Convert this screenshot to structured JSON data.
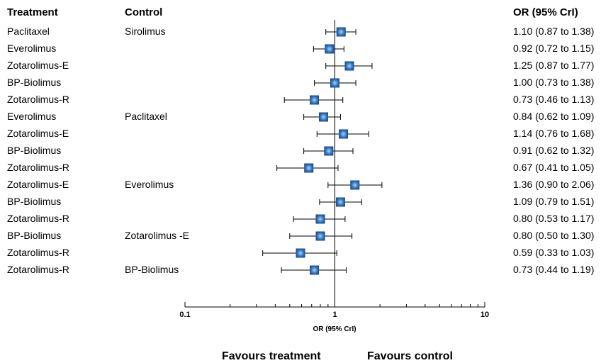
{
  "headers": {
    "treatment": "Treatment",
    "control": "Control",
    "or": "OR (95% CrI)"
  },
  "favours": {
    "left": "Favours  treatment",
    "right": "Favours  control"
  },
  "colors": {
    "marker": "#3a7fc8",
    "marker_edge": "#1c4e8a",
    "line": "#000000"
  },
  "chart_data": {
    "type": "forest",
    "scale": "log",
    "xlim": [
      0.1,
      10
    ],
    "xticks": [
      "0.1",
      "1",
      "10"
    ],
    "xlabel": "OR (95% CrI)",
    "reference_line": 1,
    "rows": [
      {
        "treatment": "Paclitaxel",
        "control": "Sirolimus",
        "or": 1.1,
        "lo": 0.87,
        "hi": 1.38,
        "label": "1.10 (0.87 to 1.38)"
      },
      {
        "treatment": "Everolimus",
        "control": "",
        "or": 0.92,
        "lo": 0.72,
        "hi": 1.15,
        "label": "0.92 (0.72 to 1.15)"
      },
      {
        "treatment": "Zotarolimus-E",
        "control": "",
        "or": 1.25,
        "lo": 0.87,
        "hi": 1.77,
        "label": "1.25 (0.87 to 1.77)"
      },
      {
        "treatment": "BP-Biolimus",
        "control": "",
        "or": 1.0,
        "lo": 0.73,
        "hi": 1.38,
        "label": "1.00 (0.73 to 1.38)"
      },
      {
        "treatment": "Zotarolimus-R",
        "control": "",
        "or": 0.73,
        "lo": 0.46,
        "hi": 1.13,
        "label": "0.73 (0.46 to 1.13)"
      },
      {
        "treatment": "Everolimus",
        "control": "Paclitaxel",
        "or": 0.84,
        "lo": 0.62,
        "hi": 1.09,
        "label": "0.84 (0.62 to 1.09)"
      },
      {
        "treatment": "Zotarolimus-E",
        "control": "",
        "or": 1.14,
        "lo": 0.76,
        "hi": 1.68,
        "label": "1.14 (0.76 to 1.68)"
      },
      {
        "treatment": "BP-Biolimus",
        "control": "",
        "or": 0.91,
        "lo": 0.62,
        "hi": 1.32,
        "label": "0.91 (0.62 to 1.32)"
      },
      {
        "treatment": "Zotarolimus-R",
        "control": "",
        "or": 0.67,
        "lo": 0.41,
        "hi": 1.05,
        "label": "0.67 (0.41 to 1.05)"
      },
      {
        "treatment": "Zotarolimus-E",
        "control": "Everolimus",
        "or": 1.36,
        "lo": 0.9,
        "hi": 2.06,
        "label": "1.36 (0.90 to 2.06)"
      },
      {
        "treatment": "BP-Biolimus",
        "control": "",
        "or": 1.09,
        "lo": 0.79,
        "hi": 1.51,
        "label": "1.09 (0.79 to 1.51)"
      },
      {
        "treatment": "Zotarolimus-R",
        "control": "",
        "or": 0.8,
        "lo": 0.53,
        "hi": 1.17,
        "label": "0.80 (0.53 to 1.17)"
      },
      {
        "treatment": "BP-Biolimus",
        "control": "Zotarolimus -E",
        "or": 0.8,
        "lo": 0.5,
        "hi": 1.3,
        "label": "0.80 (0.50 to 1.30)"
      },
      {
        "treatment": "Zotarolimus-R",
        "control": "",
        "or": 0.59,
        "lo": 0.33,
        "hi": 1.03,
        "label": "0.59 (0.33 to 1.03)"
      },
      {
        "treatment": "Zotarolimus-R",
        "control": "BP-Biolimus",
        "or": 0.73,
        "lo": 0.44,
        "hi": 1.19,
        "label": "0.73 (0.44 to 1.19)"
      }
    ]
  }
}
